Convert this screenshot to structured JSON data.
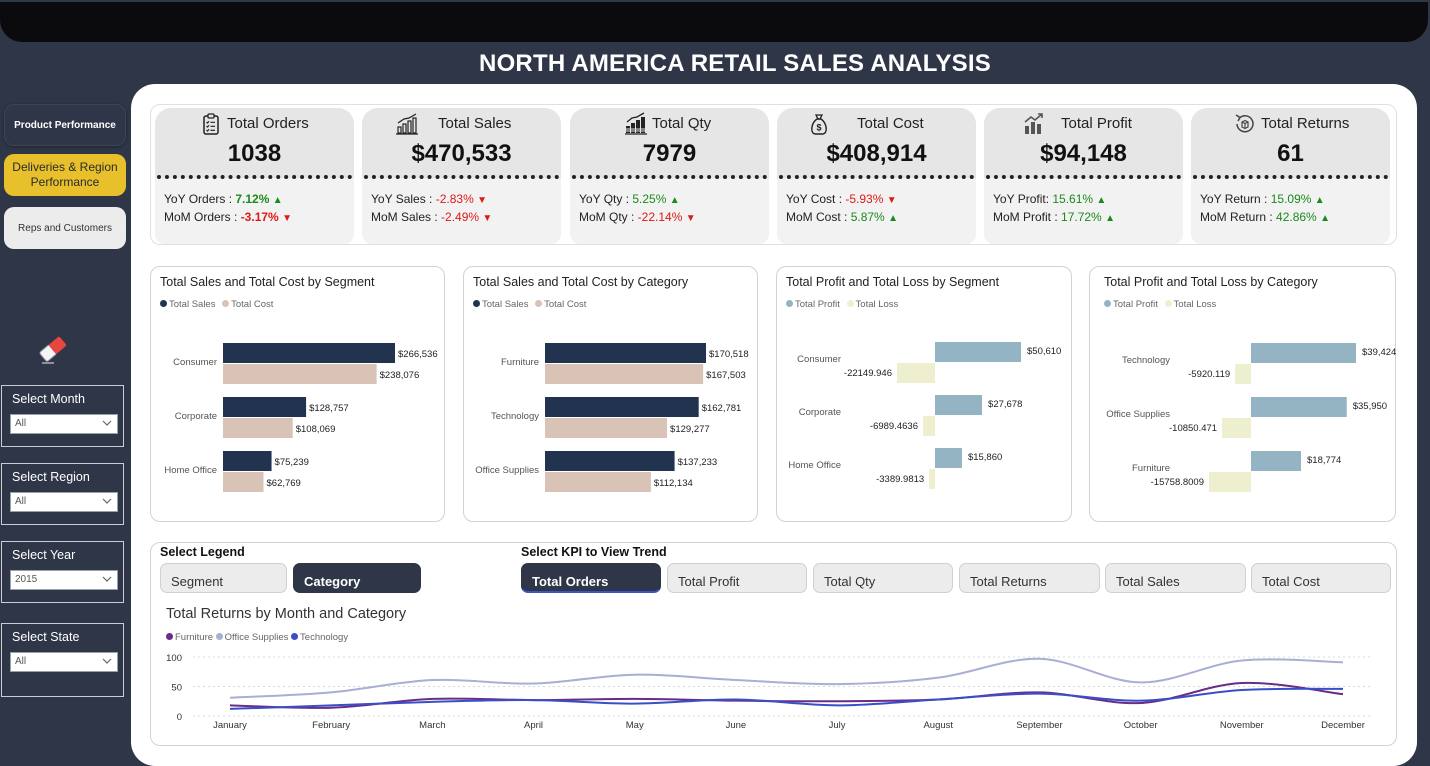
{
  "title": "NORTH AMERICA RETAIL SALES ANALYSIS",
  "nav": {
    "product_performance": "Product Performance",
    "deliveries": "Deliveries & Region Performance",
    "reps": "Reps and Customers",
    "active": "deliveries"
  },
  "icons": {
    "eraser": "eraser-icon",
    "orders": "clipboard-icon",
    "sales": "bar-growth-icon",
    "qty": "stacked-bars-icon",
    "cost": "money-bag-icon",
    "profit": "profit-chart-icon",
    "returns": "return-box-icon"
  },
  "slicers": [
    {
      "label": "Select Month",
      "value": "All"
    },
    {
      "label": "Select Region",
      "value": "All"
    },
    {
      "label": "Select Year",
      "value": "2015"
    },
    {
      "label": "Select State",
      "value": "All"
    }
  ],
  "kpis": [
    {
      "title": "Total Orders",
      "value": "1038",
      "yoy_label": "YoY Orders : ",
      "yoy": "7.12%",
      "yoy_dir": "up",
      "mom_label": "MoM Orders : ",
      "mom": "-3.17%",
      "mom_dir": "down"
    },
    {
      "title": "Total Sales",
      "value": "$470,533",
      "yoy_label": "YoY Sales : ",
      "yoy": "-2.83%",
      "yoy_dir": "down",
      "mom_label": "MoM Sales : ",
      "mom": "-2.49%",
      "mom_dir": "down"
    },
    {
      "title": "Total Qty",
      "value": "7979",
      "yoy_label": "YoY Qty : ",
      "yoy": "5.25%",
      "yoy_dir": "up",
      "mom_label": "MoM Qty : ",
      "mom": "-22.14%",
      "mom_dir": "down"
    },
    {
      "title": "Total Cost",
      "value": "$408,914",
      "yoy_label": "YoY Cost : ",
      "yoy": "-5.93%",
      "yoy_dir": "down",
      "mom_label": "MoM Cost : ",
      "mom": "5.87%",
      "mom_dir": "up"
    },
    {
      "title": "Total Profit",
      "value": "$94,148",
      "yoy_label": "YoY Profit: ",
      "yoy": "15.61%",
      "yoy_dir": "up",
      "mom_label": "MoM Profit : ",
      "mom": "17.72%",
      "mom_dir": "up"
    },
    {
      "title": "Total Returns",
      "value": "61",
      "yoy_label": "YoY Return : ",
      "yoy": "15.09%",
      "yoy_dir": "up",
      "mom_label": "MoM Return : ",
      "mom": "42.86%",
      "mom_dir": "up"
    }
  ],
  "colors": {
    "dark": "#22334f",
    "tan": "#d8c3b6",
    "profit": "#94b4c4",
    "loss": "#eeefcf",
    "furniture": "#6a2d87",
    "office": "#a9aed3",
    "technology": "#3a4fc6",
    "positive": "#1a8a1a",
    "negative": "#e01818"
  },
  "chart_data": [
    {
      "type": "bar",
      "title": "Total Sales and Total Cost by Segment",
      "categories": [
        "Consumer",
        "Corporate",
        "Home Office"
      ],
      "series": [
        {
          "name": "Total Sales",
          "values": [
            266536,
            128757,
            75239
          ],
          "labels": [
            "$266,536",
            "$128,757",
            "$75,239"
          ]
        },
        {
          "name": "Total Cost",
          "values": [
            238076,
            108069,
            62769
          ],
          "labels": [
            "$238,076",
            "$108,069",
            "$62,769"
          ]
        }
      ]
    },
    {
      "type": "bar",
      "title": "Total Sales and Total Cost by Category",
      "categories": [
        "Furniture",
        "Technology",
        "Office Supplies"
      ],
      "series": [
        {
          "name": "Total Sales",
          "values": [
            170518,
            162781,
            137233
          ],
          "labels": [
            "$170,518",
            "$162,781",
            "$137,233"
          ]
        },
        {
          "name": "Total Cost",
          "values": [
            167503,
            129277,
            112134
          ],
          "labels": [
            "$167,503",
            "$129,277",
            "$112,134"
          ]
        }
      ]
    },
    {
      "type": "bar",
      "title": "Total Profit and Total Loss by Segment",
      "categories": [
        "Consumer",
        "Corporate",
        "Home Office"
      ],
      "series": [
        {
          "name": "Total Profit",
          "values": [
            50610,
            27678,
            15860
          ],
          "labels": [
            "$50,610",
            "$27,678",
            "$15,860"
          ]
        },
        {
          "name": "Total Loss",
          "values": [
            -22149.946,
            -6989.4636,
            -3389.9813
          ],
          "labels": [
            "-22149.946",
            "-6989.4636",
            "-3389.9813"
          ]
        }
      ]
    },
    {
      "type": "bar",
      "title": "Total Profit and Total Loss by Category",
      "categories": [
        "Technology",
        "Office Supplies",
        "Furniture"
      ],
      "series": [
        {
          "name": "Total Profit",
          "values": [
            39424,
            35950,
            18774
          ],
          "labels": [
            "$39,424",
            "$35,950",
            "$18,774"
          ]
        },
        {
          "name": "Total Loss",
          "values": [
            -5920.119,
            -10850.471,
            -15758.8009
          ],
          "labels": [
            "-5920.119",
            "-10850.471",
            "-15758.8009"
          ]
        }
      ]
    },
    {
      "type": "line",
      "title": "Total Returns by Month and Category",
      "categories": [
        "January",
        "February",
        "March",
        "April",
        "May",
        "June",
        "July",
        "August",
        "September",
        "October",
        "November",
        "December"
      ],
      "ylim": [
        0,
        100
      ],
      "yticks": [
        "0",
        "50",
        "100"
      ],
      "series": [
        {
          "name": "Furniture",
          "values": [
            18,
            14,
            29,
            27,
            29,
            26,
            25,
            28,
            40,
            22,
            56,
            37
          ]
        },
        {
          "name": "Office Supplies",
          "values": [
            31,
            40,
            61,
            55,
            70,
            61,
            54,
            65,
            97,
            57,
            94,
            91
          ]
        },
        {
          "name": "Technology",
          "values": [
            12,
            18,
            24,
            27,
            21,
            28,
            18,
            28,
            38,
            26,
            44,
            46
          ]
        }
      ]
    }
  ],
  "legend_select": {
    "label": "Select Legend",
    "options": [
      "Segment",
      "Category"
    ],
    "selected": "Category"
  },
  "kpi_select": {
    "label": "Select KPI to View Trend",
    "options": [
      "Total Orders",
      "Total Profit",
      "Total Qty",
      "Total Returns",
      "Total Sales",
      "Total Cost"
    ],
    "selected": "Total Orders"
  }
}
